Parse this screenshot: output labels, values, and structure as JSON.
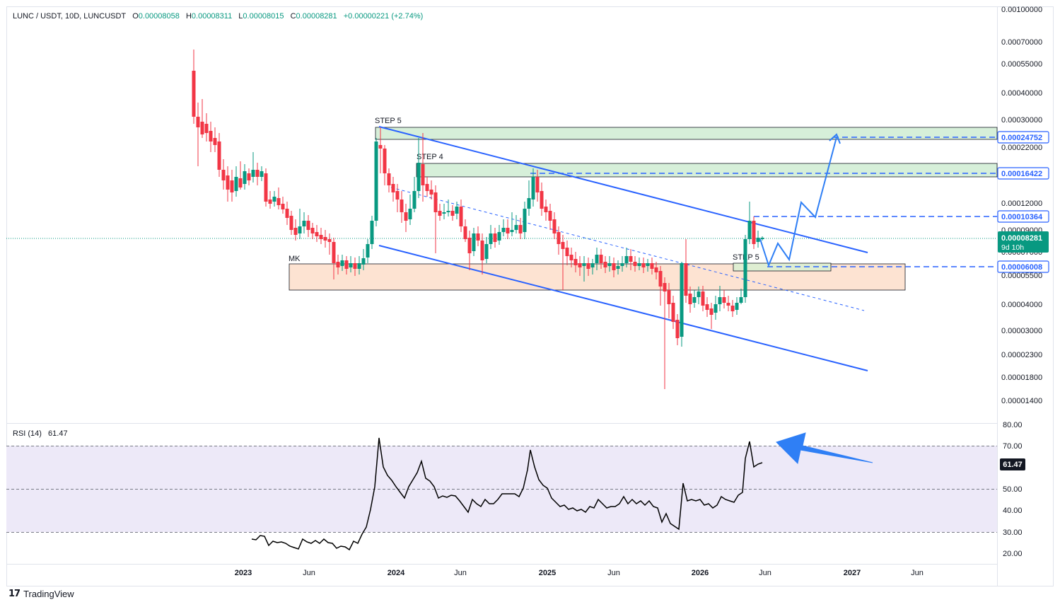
{
  "header": {
    "symbol": "LUNC / USDT, 10D, LUNCUSDT",
    "o_label": "O",
    "o_value": "0.00008058",
    "h_label": "H",
    "h_value": "0.00008311",
    "l_label": "L",
    "l_value": "0.00008015",
    "c_label": "C",
    "c_value": "0.00008281",
    "change": "+0.00000221 (+2.74%)"
  },
  "rsi_header": {
    "label": "RSI (14)",
    "value": "61.47"
  },
  "brand": {
    "name": "TradingView",
    "mark": "17"
  },
  "colors": {
    "up": "#089981",
    "down": "#f23645",
    "trendline": "#2962ff",
    "projection": "#2f7ff5",
    "resistance_zone": "#d6efd9",
    "support_zone": "#fde3d2",
    "rsi_band": "#ede9f8",
    "rsi_line": "#000000"
  },
  "chart_data": [
    {
      "type": "candlestick",
      "title": "LUNC / USDT, 10D, LUNCUSDT",
      "scale": "log",
      "y_tick_labels": [
        "0.00100000",
        "0.00070000",
        "0.00055000",
        "0.00040000",
        "0.00030000",
        "0.00022000",
        "0.00012000",
        "0.00009000",
        "0.00007000",
        "0.00005500",
        "0.00004000",
        "0.00003000",
        "0.00002300",
        "0.00001800",
        "0.00001400"
      ],
      "x_tick_labels": [
        "2023",
        "Jun",
        "2024",
        "Jun",
        "2025",
        "Jun",
        "2026",
        "Jun",
        "2027",
        "Jun"
      ],
      "price_markers": [
        {
          "label": "0.00024752",
          "style": "outline"
        },
        {
          "label": "0.00016422",
          "style": "outline"
        },
        {
          "label": "0.00010364",
          "style": "outline"
        },
        {
          "label": "0.00008281",
          "sub": "9d 10h",
          "style": "current"
        },
        {
          "label": "0.00006008",
          "style": "outline"
        }
      ],
      "annotations": [
        "STEP 5",
        "STEP 4",
        "STEP 5",
        "MK"
      ],
      "zones": [
        {
          "label": "STEP 5",
          "kind": "resistance"
        },
        {
          "label": "STEP 4",
          "kind": "resistance"
        },
        {
          "label": "MK",
          "kind": "support"
        },
        {
          "label": "STEP 5",
          "kind": "target-box"
        }
      ],
      "current_price": 8.281e-05
    },
    {
      "type": "line",
      "title": "RSI (14)",
      "last_value": 61.47,
      "y_tick_labels": [
        "80.00",
        "70.00",
        "60.00",
        "50.00",
        "40.00",
        "30.00",
        "20.00"
      ],
      "bands": {
        "upper": 70,
        "middle": 50,
        "lower": 30
      }
    }
  ]
}
